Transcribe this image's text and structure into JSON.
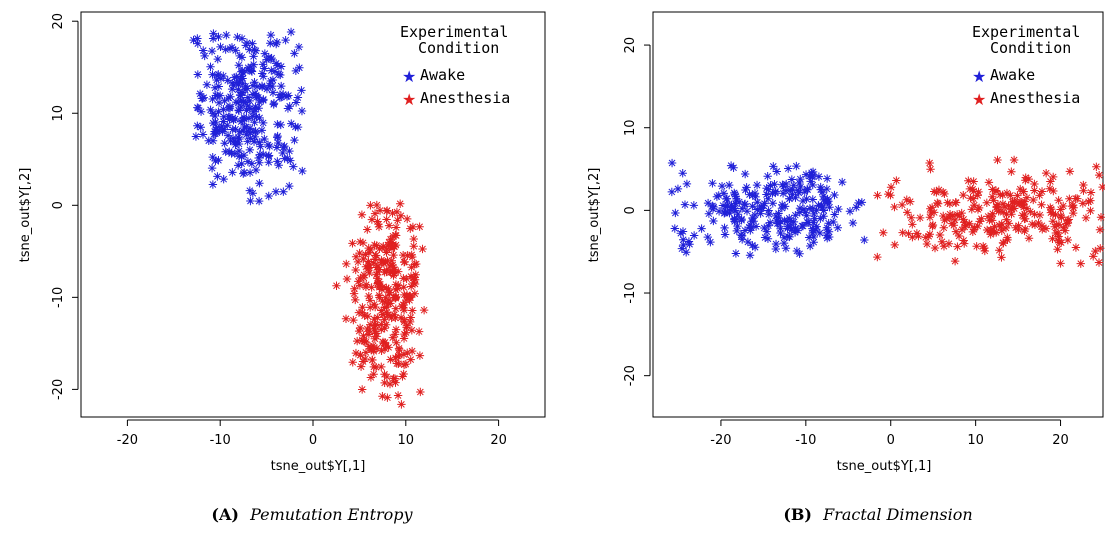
{
  "colors": {
    "awake": "#2020d8",
    "anesthesia": "#e02020"
  },
  "chart_data": [
    {
      "type": "scatter",
      "marker": "asterisk",
      "caption_label": "(A)",
      "caption_title": "Pemutation Entropy",
      "xlabel": "tsne_out$Y[,1]",
      "ylabel": "tsne_out$Y[,2]",
      "xlim": [
        -25,
        25
      ],
      "ylim": [
        -23,
        21
      ],
      "xticks": [
        -20,
        -10,
        0,
        10,
        20
      ],
      "yticks": [
        -20,
        -10,
        0,
        10,
        20
      ],
      "legend_title": [
        "Experimental",
        "Condition"
      ],
      "legend_position": "top-right",
      "grid": false,
      "series": [
        {
          "name": "Awake",
          "color": "#2020d8",
          "center": [
            -7,
            11
          ],
          "spread": [
            3.2,
            4.6
          ],
          "xrange": [
            -13,
            -1
          ],
          "yrange": [
            0,
            19
          ],
          "n": 300
        },
        {
          "name": "Anesthesia",
          "color": "#e02020",
          "center": [
            8,
            -10
          ],
          "spread": [
            2.2,
            5.2
          ],
          "xrange": [
            2,
            12
          ],
          "yrange": [
            -22,
            1
          ],
          "n": 300
        }
      ]
    },
    {
      "type": "scatter",
      "marker": "asterisk",
      "caption_label": "(B)",
      "caption_title": "Fractal Dimension",
      "xlabel": "tsne_out$Y[,1]",
      "ylabel": "tsne_out$Y[,2]",
      "xlim": [
        -28,
        25
      ],
      "ylim": [
        -25,
        24
      ],
      "xticks": [
        -20,
        -10,
        0,
        10,
        20
      ],
      "yticks": [
        -20,
        -10,
        0,
        10,
        20
      ],
      "legend_title": [
        "Experimental",
        "Condition"
      ],
      "legend_position": "top-right",
      "grid": false,
      "series": [
        {
          "name": "Awake",
          "color": "#2020d8",
          "center": [
            -14,
            0
          ],
          "spread": [
            6.2,
            2.6
          ],
          "xrange": [
            -26,
            -3
          ],
          "yrange": [
            -5.5,
            6
          ],
          "n": 260
        },
        {
          "name": "Anesthesia",
          "color": "#e02020",
          "center": [
            13,
            -0.5
          ],
          "spread": [
            7.5,
            2.6
          ],
          "xrange": [
            -3,
            25
          ],
          "yrange": [
            -6.5,
            6.5
          ],
          "n": 260
        }
      ]
    }
  ]
}
